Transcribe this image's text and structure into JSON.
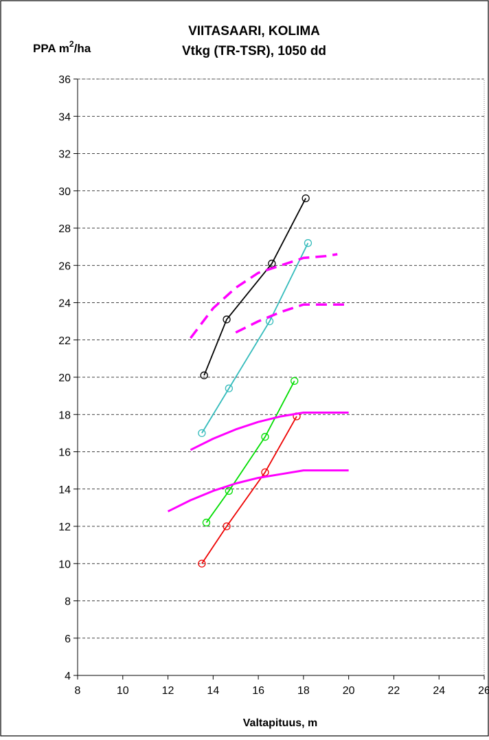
{
  "chart_data": {
    "type": "line",
    "title_line1": "VIITASAARI, KOLIMA",
    "title_line2": "Vtkg (TR-TSR), 1050 dd",
    "ylabel": "PPA m",
    "ylabel_sup": "2",
    "ylabel_suffix": "/ha",
    "xlabel": "Valtapituus, m",
    "xlim": [
      8,
      26
    ],
    "ylim": [
      4,
      36
    ],
    "xticks": [
      8,
      10,
      12,
      14,
      16,
      18,
      20,
      22,
      24,
      26
    ],
    "yticks": [
      4,
      6,
      8,
      10,
      12,
      14,
      16,
      18,
      20,
      22,
      24,
      26,
      28,
      30,
      32,
      34,
      36
    ],
    "grid": "horizontal dashed",
    "series": [
      {
        "color": "#000000",
        "style": "solid",
        "markers": true,
        "x": [
          13.6,
          14.6,
          16.6,
          18.1
        ],
        "y": [
          20.1,
          23.1,
          26.1,
          29.6
        ]
      },
      {
        "color": "#33bbbb",
        "style": "solid",
        "markers": true,
        "x": [
          13.5,
          14.7,
          16.5,
          18.2
        ],
        "y": [
          17.0,
          19.4,
          23.0,
          27.2
        ]
      },
      {
        "color": "#00dd00",
        "style": "solid",
        "markers": true,
        "x": [
          13.7,
          14.7,
          16.3,
          17.6
        ],
        "y": [
          12.2,
          13.9,
          16.8,
          19.8
        ]
      },
      {
        "color": "#ee0000",
        "style": "solid",
        "markers": true,
        "x": [
          13.5,
          14.6,
          16.3,
          17.7
        ],
        "y": [
          10.0,
          12.0,
          14.9,
          17.9
        ]
      },
      {
        "color": "#ff00ff",
        "style": "dashed",
        "markers": false,
        "x": [
          13.0,
          14.0,
          15.0,
          16.0,
          17.0,
          18.0,
          19.0,
          19.5
        ],
        "y": [
          22.1,
          23.7,
          24.8,
          25.6,
          26.0,
          26.4,
          26.5,
          26.6
        ]
      },
      {
        "color": "#ff00ff",
        "style": "dashed",
        "markers": false,
        "x": [
          15.0,
          16.0,
          17.0,
          18.0,
          19.0,
          20.0
        ],
        "y": [
          22.4,
          23.0,
          23.5,
          23.9,
          23.9,
          23.9
        ]
      },
      {
        "color": "#ff00ff",
        "style": "solid",
        "markers": false,
        "x": [
          13.0,
          14.0,
          15.0,
          16.0,
          17.0,
          18.0,
          19.0,
          20.0
        ],
        "y": [
          16.1,
          16.7,
          17.2,
          17.6,
          17.9,
          18.1,
          18.1,
          18.1
        ]
      },
      {
        "color": "#ff00ff",
        "style": "solid",
        "markers": false,
        "x": [
          12.0,
          13.0,
          14.0,
          15.0,
          16.0,
          17.0,
          18.0,
          19.0,
          20.0
        ],
        "y": [
          12.8,
          13.4,
          13.9,
          14.3,
          14.6,
          14.8,
          15.0,
          15.0,
          15.0
        ]
      }
    ]
  }
}
